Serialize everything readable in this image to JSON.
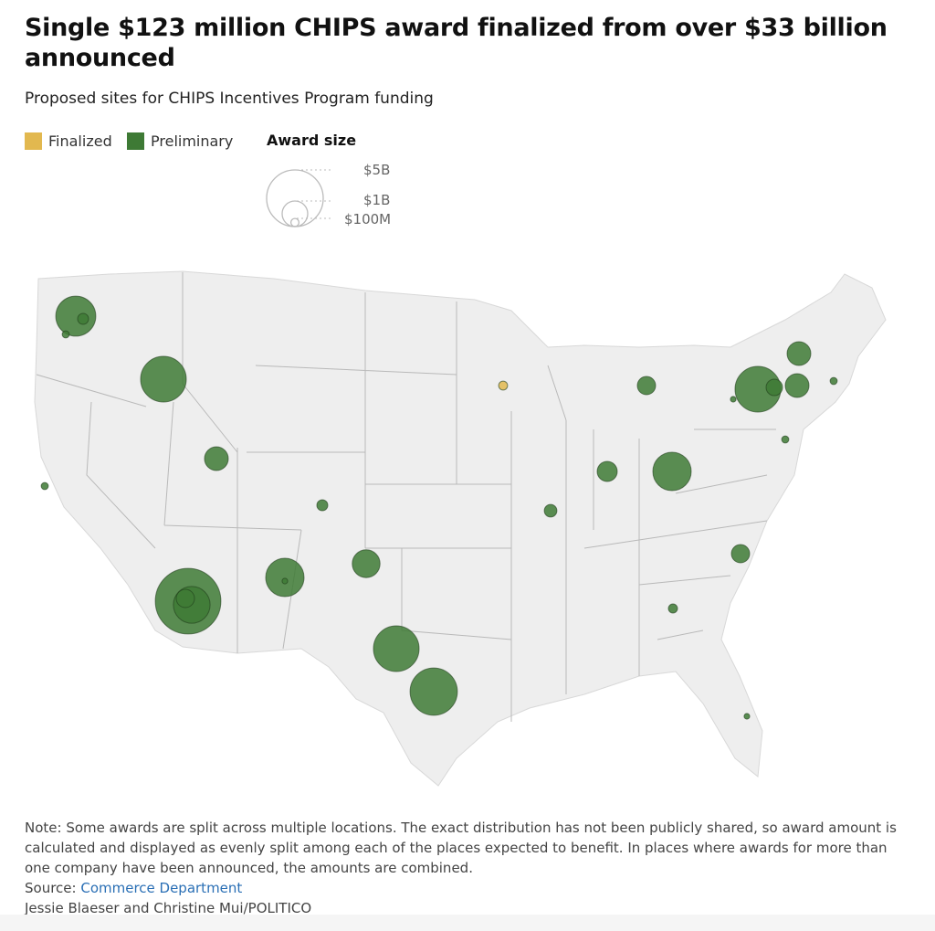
{
  "title": "Single $123 million CHIPS award finalized from over $33 billion announced",
  "subtitle": "Proposed sites for CHIPS Incentives Program funding",
  "legend": {
    "finalized": "Finalized",
    "preliminary": "Preliminary",
    "award_size": "Award size",
    "sizes": [
      "$5B",
      "$1B",
      "$100M"
    ]
  },
  "colors": {
    "finalized": "#e2b84f",
    "preliminary": "#3e7a35",
    "land": "#eeeeee",
    "border": "#bdbdbd"
  },
  "chart_data": {
    "type": "bubble-map",
    "size_scale_billions": [
      5,
      1,
      0.1
    ],
    "sites": [
      {
        "region": "Washington",
        "status": "preliminary",
        "award_b": 2.5
      },
      {
        "region": "Washington",
        "status": "preliminary",
        "award_b": 0.19
      },
      {
        "region": "Washington",
        "status": "preliminary",
        "award_b": 0.08
      },
      {
        "region": "Oregon",
        "status": "preliminary",
        "award_b": 3.25
      },
      {
        "region": "California",
        "status": "preliminary",
        "award_b": 0.08
      },
      {
        "region": "Utah",
        "status": "preliminary",
        "award_b": 0.88
      },
      {
        "region": "Colorado",
        "status": "preliminary",
        "award_b": 0.19
      },
      {
        "region": "Arizona",
        "status": "preliminary",
        "award_b": 6.7
      },
      {
        "region": "Arizona",
        "status": "preliminary",
        "award_b": 2.1
      },
      {
        "region": "Arizona",
        "status": "preliminary",
        "award_b": 0.52
      },
      {
        "region": "New Mexico",
        "status": "preliminary",
        "award_b": 2.3
      },
      {
        "region": "New Mexico",
        "status": "preliminary",
        "award_b": 0.05
      },
      {
        "region": "Texas",
        "status": "preliminary",
        "award_b": 1.2
      },
      {
        "region": "Texas",
        "status": "preliminary",
        "award_b": 3.25
      },
      {
        "region": "Texas",
        "status": "preliminary",
        "award_b": 3.5
      },
      {
        "region": "Minnesota",
        "status": "finalized",
        "award_b": 0.123
      },
      {
        "region": "Michigan",
        "status": "preliminary",
        "award_b": 0.52
      },
      {
        "region": "Indiana",
        "status": "preliminary",
        "award_b": 0.63
      },
      {
        "region": "Ohio",
        "status": "preliminary",
        "award_b": 2.3
      },
      {
        "region": "Missouri",
        "status": "preliminary",
        "award_b": 0.25
      },
      {
        "region": "New York",
        "status": "preliminary",
        "award_b": 3.25
      },
      {
        "region": "New York",
        "status": "preliminary",
        "award_b": 0.42
      },
      {
        "region": "New York",
        "status": "preliminary",
        "award_b": 0.88
      },
      {
        "region": "Vermont",
        "status": "preliminary",
        "award_b": 0.88
      },
      {
        "region": "Massachusetts",
        "status": "preliminary",
        "award_b": 0.08
      },
      {
        "region": "New Jersey",
        "status": "preliminary",
        "award_b": 0.08
      },
      {
        "region": "North Carolina",
        "status": "preliminary",
        "award_b": 0.52
      },
      {
        "region": "Georgia",
        "status": "preliminary",
        "award_b": 0.13
      },
      {
        "region": "Florida",
        "status": "preliminary",
        "award_b": 0.05
      },
      {
        "region": "New York",
        "status": "preliminary",
        "award_b": 0.05
      }
    ]
  },
  "note": "Note: Some awards are split across multiple locations. The exact distribution has not been publicly shared, so award amount is calculated and displayed as evenly split among each of the places expected to benefit. In places where awards for more than one company have been announced, the amounts are combined.",
  "source_label": "Source: ",
  "source_link": "Commerce Department",
  "credit": "Jessie Blaeser and Christine Mui/POLITICO"
}
